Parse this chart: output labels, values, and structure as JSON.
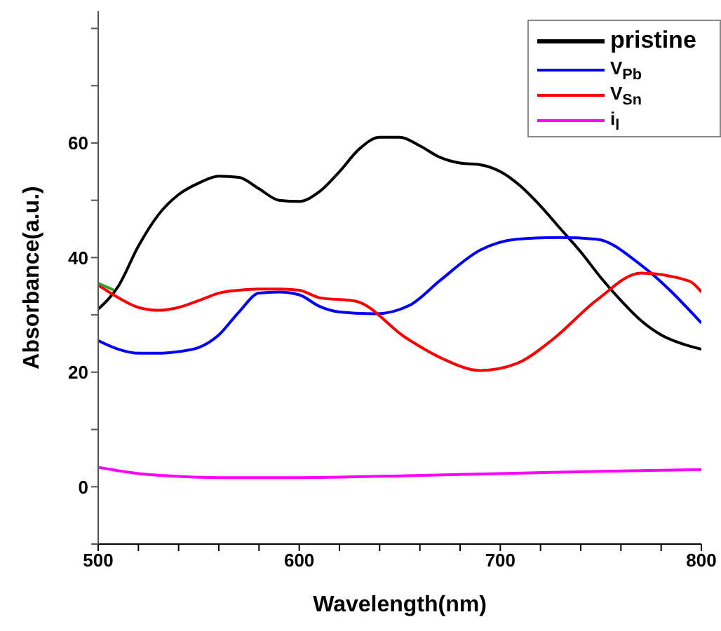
{
  "chart_data": {
    "type": "line",
    "xlabel": "Wavelength(nm)",
    "ylabel": "Absorbance(a.u.)",
    "xlim": [
      500,
      800
    ],
    "xticks": [
      500,
      {
        "value": 520,
        "label": null
      },
      {
        "value": 540,
        "label": null
      },
      {
        "value": 560,
        "label": null
      },
      {
        "value": 580,
        "label": null
      },
      600,
      {
        "value": 620,
        "label": null
      },
      {
        "value": 640,
        "label": null
      },
      {
        "value": 660,
        "label": null
      },
      {
        "value": 680,
        "label": null
      },
      700,
      {
        "value": 720,
        "label": null
      },
      {
        "value": 740,
        "label": null
      },
      {
        "value": 760,
        "label": null
      },
      {
        "value": 780,
        "label": null
      },
      800
    ],
    "ylim": [
      -10,
      83
    ],
    "yticks": [
      {
        "value": -10,
        "label": null
      },
      0,
      {
        "value": 10,
        "label": null
      },
      20,
      {
        "value": 30,
        "label": null
      },
      40,
      {
        "value": 50,
        "label": null
      },
      60,
      {
        "value": 70,
        "label": null
      },
      {
        "value": 80,
        "label": null
      }
    ],
    "legend": "top right",
    "marker": "none",
    "line_style": "solid",
    "series": [
      {
        "name": "pristine",
        "color": "#000000",
        "x": [
          500,
          510,
          520,
          530,
          540,
          550,
          560,
          570,
          580,
          590,
          600,
          610,
          620,
          630,
          640,
          650,
          660,
          670,
          680,
          690,
          700,
          710,
          720,
          730,
          740,
          750,
          760,
          770,
          780,
          790,
          800
        ],
        "values": [
          31,
          35,
          42,
          47.5,
          51,
          53,
          54.2,
          54,
          52,
          50,
          49.8,
          51.5,
          55,
          59,
          61,
          61,
          59.5,
          57.5,
          56.5,
          56.2,
          55,
          52.5,
          49,
          45,
          41,
          36.5,
          32.5,
          29,
          26.5,
          25,
          24
        ]
      },
      {
        "name": "V$_{Pb}$",
        "color": "#0000ff",
        "x": [
          500,
          510,
          520,
          530,
          540,
          550,
          560,
          570,
          580,
          590,
          600,
          610,
          620,
          638,
          655,
          670,
          690,
          708,
          729,
          748,
          770,
          800
        ],
        "values": [
          25.5,
          24,
          23.3,
          23.3,
          23.6,
          24.3,
          26.5,
          30.5,
          33.8,
          34,
          33.5,
          31.5,
          30.5,
          30.2,
          31.7,
          36,
          41.3,
          43.2,
          43.5,
          43.2,
          38.7,
          28.6
        ]
      },
      {
        "name": "V$_{Sn}$",
        "color": "#ff0000",
        "x": [
          500,
          510,
          520,
          530,
          540,
          550,
          560,
          570,
          580,
          590,
          600,
          610,
          628,
          653,
          671,
          690,
          708,
          726,
          748,
          770,
          794,
          800
        ],
        "values": [
          35.2,
          33,
          31.3,
          30.8,
          31.3,
          32.5,
          33.8,
          34.3,
          34.5,
          34.5,
          34.3,
          33,
          32.4,
          26,
          22.4,
          20.3,
          21.5,
          25.7,
          32.6,
          37.3,
          35.9,
          34
        ]
      },
      {
        "name": "i$_{l}$",
        "color": "#ff00ff",
        "x": [
          500,
          520,
          540,
          560,
          600,
          650,
          700,
          750,
          800
        ],
        "values": [
          3.4,
          2.3,
          1.8,
          1.6,
          1.6,
          1.9,
          2.3,
          2.7,
          3
        ]
      },
      {
        "color": "#2ca02c",
        "x": [
          500,
          508
        ],
        "values": [
          35.5,
          34.3
        ]
      }
    ]
  }
}
